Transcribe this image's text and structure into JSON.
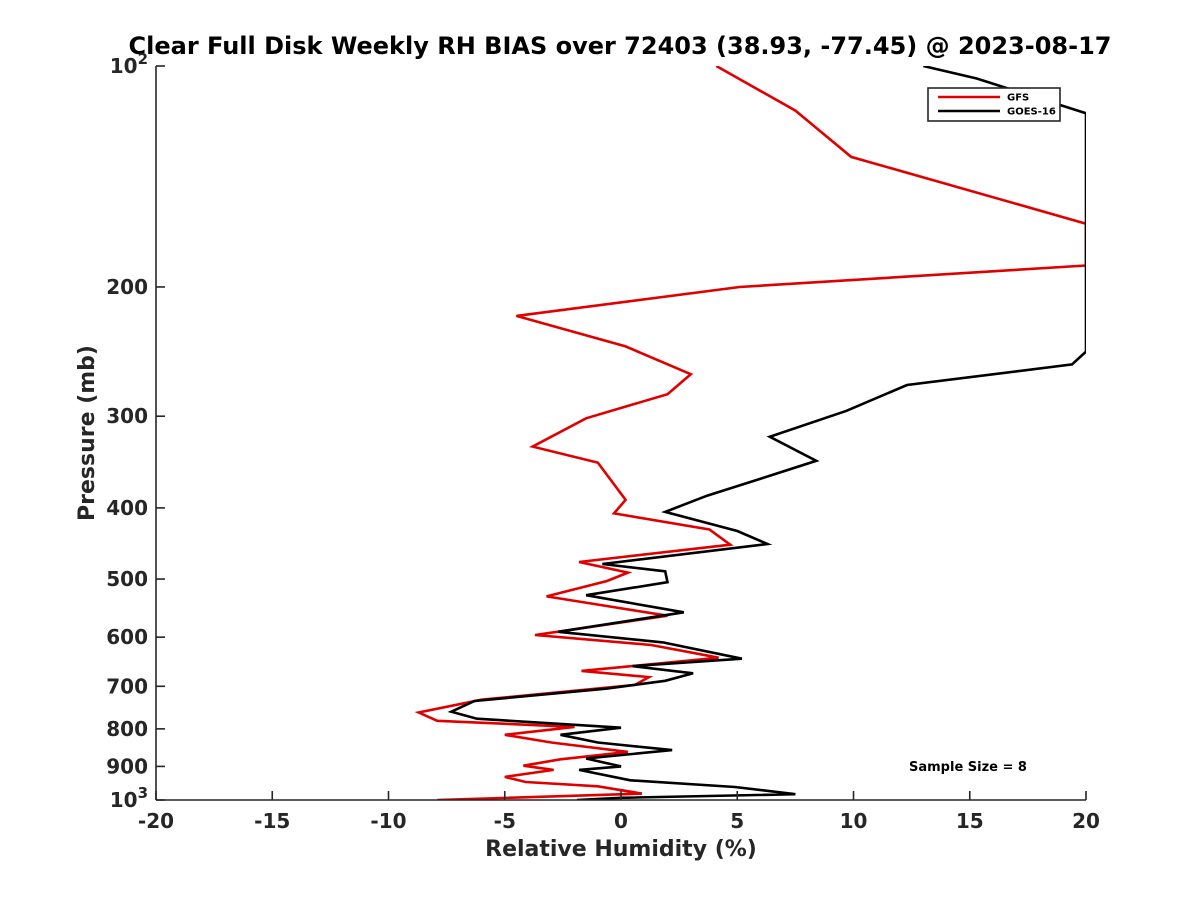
{
  "chart_data": {
    "type": "line",
    "title": "Clear Full Disk Weekly RH BIAS over 72403 (38.93, -77.45) @ 2023-08-17",
    "xlabel": "Relative Humidity (%)",
    "ylabel": "Pressure (mb)",
    "xlim": [
      -20,
      20
    ],
    "ylim": [
      100,
      1000
    ],
    "yscale": "log",
    "y_reversed": true,
    "x_ticks": [
      "-20",
      "-15",
      "-10",
      "-5",
      "0",
      "5",
      "10",
      "15",
      "20"
    ],
    "y_ticks": [
      {
        "value": 100,
        "base": "10",
        "exp": "2"
      },
      {
        "value": 200,
        "label": "200"
      },
      {
        "value": 300,
        "label": "300"
      },
      {
        "value": 400,
        "label": "400"
      },
      {
        "value": 500,
        "label": "500"
      },
      {
        "value": 600,
        "label": "600"
      },
      {
        "value": 700,
        "label": "700"
      },
      {
        "value": 800,
        "label": "800"
      },
      {
        "value": 900,
        "label": "900"
      },
      {
        "value": 1000,
        "base": "10",
        "exp": "3"
      }
    ],
    "legend_position": "top-right",
    "annotation": "Sample Size = 8",
    "series": [
      {
        "name": "GFS",
        "color": "#e00000",
        "points": [
          [
            4.1,
            100
          ],
          [
            7.5,
            115
          ],
          [
            9.9,
            133
          ],
          [
            20.0,
            164
          ],
          [
            20.0,
            187
          ],
          [
            5.1,
            200
          ],
          [
            -4.5,
            219
          ],
          [
            0.2,
            241
          ],
          [
            3.0,
            263
          ],
          [
            2.0,
            280
          ],
          [
            -1.5,
            302
          ],
          [
            -3.8,
            330
          ],
          [
            -1.0,
            347
          ],
          [
            0.2,
            390
          ],
          [
            -0.3,
            407
          ],
          [
            3.8,
            428
          ],
          [
            4.7,
            449
          ],
          [
            -1.8,
            474
          ],
          [
            0.3,
            490
          ],
          [
            -0.6,
            503
          ],
          [
            -3.2,
            528
          ],
          [
            2.0,
            561
          ],
          [
            -3.7,
            596
          ],
          [
            1.3,
            615
          ],
          [
            4.2,
            640
          ],
          [
            -1.7,
            667
          ],
          [
            1.2,
            680
          ],
          [
            0.6,
            697
          ],
          [
            -6.0,
            730
          ],
          [
            -8.7,
            760
          ],
          [
            -7.9,
            780
          ],
          [
            -2.0,
            795
          ],
          [
            -5.0,
            815
          ],
          [
            -3.0,
            835
          ],
          [
            0.3,
            860
          ],
          [
            -2.6,
            880
          ],
          [
            -4.2,
            898
          ],
          [
            -2.9,
            910
          ],
          [
            -5.0,
            930
          ],
          [
            -4.1,
            945
          ],
          [
            -1.0,
            958
          ],
          [
            0.9,
            980
          ],
          [
            -7.9,
            1000
          ]
        ]
      },
      {
        "name": "GOES-16",
        "color": "#000000",
        "points": [
          [
            13.0,
            100
          ],
          [
            15.3,
            104
          ],
          [
            20.0,
            116
          ],
          [
            20.0,
            245
          ],
          [
            19.4,
            255
          ],
          [
            12.3,
            272
          ],
          [
            9.7,
            295
          ],
          [
            6.4,
            320
          ],
          [
            8.4,
            345
          ],
          [
            6.0,
            365
          ],
          [
            3.7,
            385
          ],
          [
            1.9,
            405
          ],
          [
            5.0,
            430
          ],
          [
            6.3,
            448
          ],
          [
            -0.8,
            477
          ],
          [
            1.9,
            488
          ],
          [
            2.0,
            505
          ],
          [
            -1.5,
            526
          ],
          [
            2.7,
            555
          ],
          [
            -2.7,
            590
          ],
          [
            1.8,
            610
          ],
          [
            5.2,
            642
          ],
          [
            0.5,
            657
          ],
          [
            3.1,
            672
          ],
          [
            1.9,
            688
          ],
          [
            -0.6,
            705
          ],
          [
            -6.3,
            733
          ],
          [
            -7.3,
            758
          ],
          [
            -6.2,
            775
          ],
          [
            0.0,
            797
          ],
          [
            -2.6,
            815
          ],
          [
            -1.0,
            835
          ],
          [
            2.2,
            855
          ],
          [
            -1.5,
            878
          ],
          [
            0.0,
            900
          ],
          [
            -1.8,
            910
          ],
          [
            0.4,
            940
          ],
          [
            4.9,
            960
          ],
          [
            7.5,
            982
          ],
          [
            0.0,
            993
          ],
          [
            -1.9,
            1000
          ]
        ]
      }
    ]
  }
}
